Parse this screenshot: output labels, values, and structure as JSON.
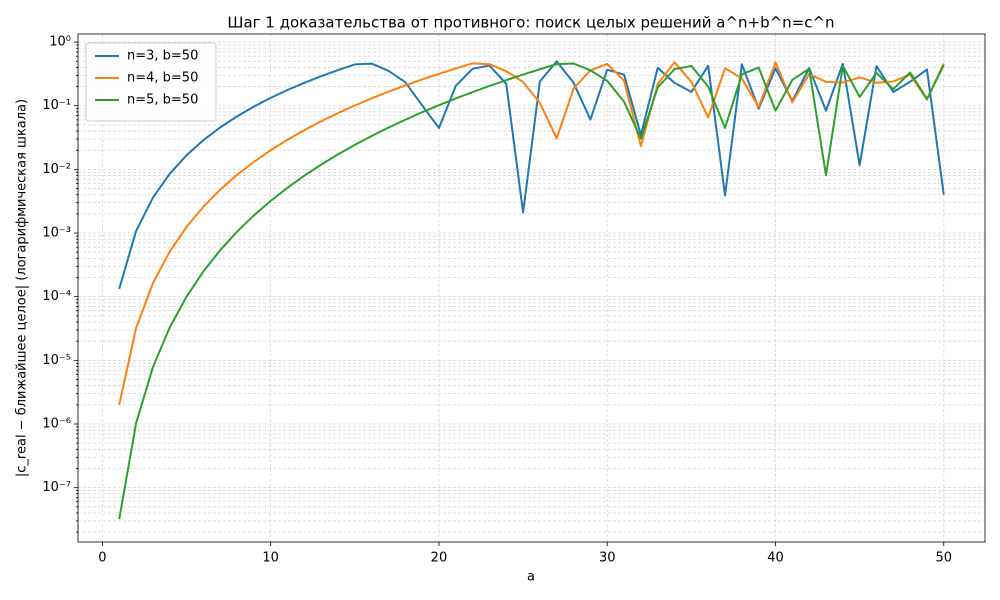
{
  "chart_data": {
    "type": "line",
    "title": "Шаг 1 доказательства от противного: поиск целых решений a^n+b^n=c^n",
    "xlabel": "a",
    "ylabel": "|c_real − ближайшее целое| (логарифмическая шкала)",
    "x": [
      1,
      2,
      3,
      4,
      5,
      6,
      7,
      8,
      9,
      10,
      11,
      12,
      13,
      14,
      15,
      16,
      17,
      18,
      19,
      20,
      21,
      22,
      23,
      24,
      25,
      26,
      27,
      28,
      29,
      30,
      31,
      32,
      33,
      34,
      35,
      36,
      37,
      38,
      39,
      40,
      41,
      42,
      43,
      44,
      45,
      46,
      47,
      48,
      49,
      50
    ],
    "series": [
      {
        "name": "n=3, b=50",
        "color": "#1f77b4",
        "values": [
          0.000133,
          0.00107,
          0.0036,
          0.00853,
          0.01666,
          0.02878,
          0.04569,
          0.06817,
          0.09701,
          0.133,
          0.1768,
          0.2294,
          0.2912,
          0.3632,
          0.446,
          0.4597,
          0.3533,
          0.2342,
          0.1017,
          0.0447,
          0.2055,
          0.3812,
          0.4277,
          0.2208,
          0.0021,
          0.2415,
          0.4976,
          0.2294,
          0.0607,
          0.368,
          0.3073,
          0.0347,
          0.3941,
          0.2291,
          0.1648,
          0.4241,
          0.0039,
          0.4488,
          0.0898,
          0.3879,
          0.1182,
          0.3913,
          0.0836,
          0.4566,
          0.0116,
          0.419,
          0.1646,
          0.2381,
          0.3725,
          0.004
        ]
      },
      {
        "name": "n=4, b=50",
        "color": "#ff7f0e",
        "values": [
          2e-06,
          3.2e-05,
          0.000162,
          0.000512,
          0.00125,
          0.002592,
          0.004802,
          0.008192,
          0.01312,
          0.01999,
          0.02926,
          0.04142,
          0.05702,
          0.07666,
          0.1009,
          0.1306,
          0.1662,
          0.2086,
          0.2586,
          0.317,
          0.3845,
          0.4621,
          0.4495,
          0.3493,
          0.2364,
          0.1101,
          0.0306,
          0.1864,
          0.3582,
          0.4533,
          0.2473,
          0.0232,
          0.2196,
          0.4817,
          0.2364,
          0.0656,
          0.3881,
          0.2686,
          0.0956,
          0.4809,
          0.1128,
          0.3145,
          0.2374,
          0.2315,
          0.2793,
          0.2301,
          0.2409,
          0.3075,
          0.1252,
          0.4604
        ]
      },
      {
        "name": "n=5, b=50",
        "color": "#2ca02c",
        "values": [
          3.2e-08,
          1.024e-06,
          7.78e-06,
          3.28e-05,
          0.0001,
          0.000249,
          0.000538,
          0.00105,
          0.00189,
          0.0032,
          0.00515,
          0.00796,
          0.01188,
          0.0172,
          0.02428,
          0.03351,
          0.04535,
          0.06032,
          0.07899,
          0.102,
          0.13,
          0.1638,
          0.2043,
          0.2522,
          0.3087,
          0.3745,
          0.451,
          0.461,
          0.3602,
          0.2455,
          0.1157,
          0.0304,
          0.1939,
          0.3761,
          0.4221,
          0.1995,
          0.0448,
          0.3117,
          0.3981,
          0.0838,
          0.2551,
          0.3811,
          0.0081,
          0.4226,
          0.1374,
          0.3278,
          0.1819,
          0.333,
          0.1278,
          0.4349
        ]
      }
    ],
    "xlim": [
      -1.45,
      52.45
    ],
    "xticks": [
      0,
      10,
      20,
      30,
      40,
      50
    ],
    "ylim": [
      1.4e-08,
      1.34
    ],
    "yscale": "log",
    "yticks": [
      {
        "value": 1e-07,
        "label": "10⁻⁷"
      },
      {
        "value": 1e-06,
        "label": "10⁻⁶"
      },
      {
        "value": 1e-05,
        "label": "10⁻⁵"
      },
      {
        "value": 0.0001,
        "label": "10⁻⁴"
      },
      {
        "value": 0.001,
        "label": "10⁻³"
      },
      {
        "value": 0.01,
        "label": "10⁻²"
      },
      {
        "value": 0.1,
        "label": "10⁻¹"
      },
      {
        "value": 1,
        "label": "10⁰"
      }
    ],
    "minor_yticks": [
      2e-08,
      3e-08,
      4e-08,
      5e-08,
      6e-08,
      7e-08,
      8e-08,
      9e-08,
      2e-07,
      3e-07,
      4e-07,
      5e-07,
      6e-07,
      7e-07,
      8e-07,
      9e-07,
      2e-06,
      3e-06,
      4e-06,
      5e-06,
      6e-06,
      7e-06,
      8e-06,
      9e-06,
      2e-05,
      3e-05,
      4e-05,
      5e-05,
      6e-05,
      7e-05,
      8e-05,
      9e-05,
      0.0002,
      0.0003,
      0.0004,
      0.0005,
      0.0006,
      0.0007,
      0.0008,
      0.0009,
      0.002,
      0.003,
      0.004,
      0.005,
      0.006,
      0.007,
      0.008,
      0.009,
      0.02,
      0.03,
      0.04,
      0.05,
      0.06,
      0.07,
      0.08,
      0.09,
      0.2,
      0.3,
      0.4,
      0.5,
      0.6,
      0.7,
      0.8,
      0.9
    ],
    "grid": true,
    "legend": "upper-left"
  }
}
